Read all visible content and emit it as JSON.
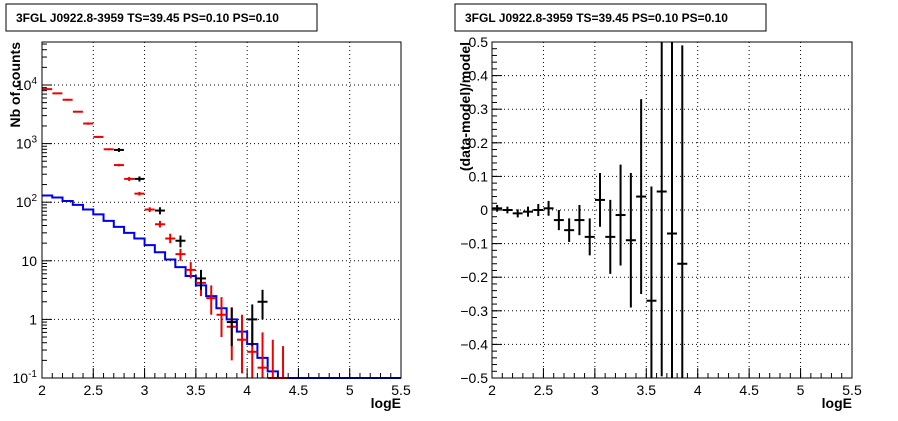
{
  "chart_data": [
    {
      "type": "histogram",
      "title": "3FGL J0922.8-3959 TS=39.45 PS=0.10 PS=0.10",
      "xlabel": "logE",
      "ylabel": "Nb of counts",
      "log_y": true,
      "grid": true,
      "xlim": [
        2,
        5.5
      ],
      "ylim": [
        0.1,
        50000
      ],
      "x_ticks": [
        "2",
        "2.5",
        "3",
        "3.5",
        "4",
        "4.5",
        "5",
        "5.5"
      ],
      "y_ticks": [
        "10^-1",
        "1",
        "10",
        "10^2",
        "10^3",
        "10^4"
      ],
      "colors": {
        "total_model": "#ee0000",
        "component": "#0000ee",
        "data": "#000000"
      },
      "bin_edges": [
        2.0,
        2.1,
        2.2,
        2.3,
        2.4,
        2.5,
        2.6,
        2.7,
        2.8,
        2.9,
        3.0,
        3.1,
        3.2,
        3.3,
        3.4,
        3.5,
        3.6,
        3.7,
        3.8,
        3.9,
        4.0,
        4.1,
        4.2,
        4.3,
        4.4,
        4.5,
        4.6,
        4.7,
        4.8,
        4.9,
        5.0,
        5.1,
        5.2,
        5.3,
        5.4,
        5.5
      ],
      "series": [
        {
          "style": "red-error-crosses",
          "x": [
            2.05,
            2.15,
            2.25,
            2.35,
            2.45,
            2.55,
            2.65,
            2.75,
            2.85,
            2.95,
            3.05,
            3.15,
            3.25,
            3.35,
            3.45,
            3.55,
            3.65,
            3.75,
            3.85,
            3.95,
            4.05,
            4.15,
            4.25,
            4.35
          ],
          "y": [
            8500,
            7200,
            5600,
            3500,
            2200,
            1300,
            800,
            430,
            250,
            140,
            75,
            42,
            24,
            13,
            7,
            4.2,
            2.3,
            1.2,
            0.75,
            0.45,
            0.28,
            0.15,
            0.1,
            0.1
          ],
          "ylo": [
            8200,
            7000,
            5400,
            3400,
            2100,
            1250,
            770,
            410,
            230,
            130,
            68,
            37,
            20,
            10,
            5,
            2.5,
            1.2,
            0.5,
            0.2,
            0.12,
            0.1,
            0.1,
            0.1,
            0.1
          ],
          "yhi": [
            8800,
            7400,
            5800,
            3600,
            2300,
            1350,
            830,
            450,
            270,
            150,
            82,
            48,
            29,
            16,
            9.5,
            6.5,
            3.8,
            2.4,
            1.6,
            1.2,
            0.9,
            0.6,
            0.45,
            0.35
          ]
        },
        {
          "style": "blue-step",
          "values": [
            130,
            120,
            105,
            90,
            75,
            62,
            48,
            38,
            30,
            24,
            18.5,
            14,
            10.5,
            7.8,
            5.5,
            3.8,
            2.5,
            1.55,
            1.0,
            0.62,
            0.38,
            0.22,
            0.13,
            0.1,
            0.1,
            0.1,
            0.1,
            0.1,
            0.1,
            0.1,
            0.1,
            0.1,
            0.1,
            0.1,
            0.1
          ]
        },
        {
          "style": "black-error-crosses",
          "x": [
            2.75,
            2.95,
            3.15,
            3.35,
            3.55,
            3.85,
            4.05,
            4.15
          ],
          "y": [
            780,
            250,
            72,
            22,
            5,
            0.9,
            1.0,
            2.0
          ],
          "ylo": [
            720,
            225,
            62,
            17,
            3.2,
            0.35,
            0.35,
            1.0
          ],
          "yhi": [
            840,
            275,
            82,
            27,
            7,
            1.6,
            1.8,
            3.2
          ]
        }
      ]
    },
    {
      "type": "scatter",
      "title": "3FGL J0922.8-3959 TS=39.45 PS=0.10 PS=0.10",
      "xlabel": "logE",
      "ylabel": "(data-model)/model",
      "grid": true,
      "xlim": [
        2,
        5.5
      ],
      "ylim": [
        -0.5,
        0.5
      ],
      "x_ticks": [
        "2",
        "2.5",
        "3",
        "3.5",
        "4",
        "4.5",
        "5",
        "5.5"
      ],
      "y_ticks": [
        "−0.5",
        "−0.4",
        "−0.3",
        "−0.2",
        "−0.1",
        "0",
        "0.1",
        "0.2",
        "0.3",
        "0.4",
        "0.5"
      ],
      "series": [
        {
          "style": "black-error-crosses",
          "x": [
            2.05,
            2.15,
            2.25,
            2.35,
            2.45,
            2.55,
            2.65,
            2.75,
            2.85,
            2.95,
            3.05,
            3.15,
            3.25,
            3.35,
            3.45,
            3.55,
            3.65,
            3.75,
            3.85
          ],
          "y": [
            0.005,
            0.0,
            -0.01,
            -0.005,
            0.0,
            0.005,
            -0.03,
            -0.06,
            -0.03,
            -0.08,
            0.03,
            -0.08,
            -0.015,
            -0.09,
            0.04,
            -0.27,
            0.055,
            -0.07,
            -0.16
          ],
          "yerr": [
            0.01,
            0.01,
            0.012,
            0.015,
            0.018,
            0.022,
            0.03,
            0.035,
            0.045,
            0.055,
            0.08,
            0.11,
            0.15,
            0.2,
            0.29,
            0.34,
            0.55,
            0.6,
            0.65
          ]
        }
      ]
    }
  ]
}
